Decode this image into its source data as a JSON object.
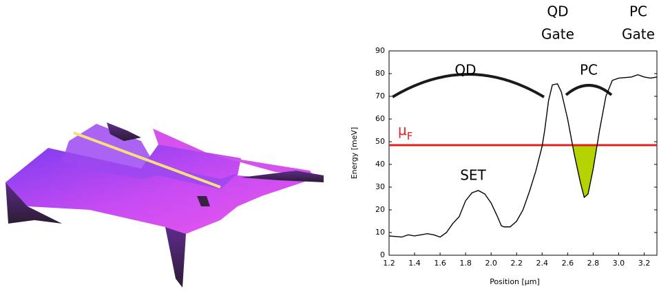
{
  "chart_data": {
    "type": "line",
    "x_label": "Position [μm]",
    "y_label": "Energy [meV]",
    "x": [
      1.2,
      1.3,
      1.35,
      1.4,
      1.5,
      1.55,
      1.6,
      1.65,
      1.7,
      1.75,
      1.8,
      1.85,
      1.9,
      1.95,
      2.0,
      2.05,
      2.08,
      2.1,
      2.15,
      2.2,
      2.25,
      2.3,
      2.35,
      2.4,
      2.42,
      2.45,
      2.48,
      2.52,
      2.55,
      2.6,
      2.65,
      2.7,
      2.73,
      2.76,
      2.8,
      2.85,
      2.9,
      2.95,
      3.0,
      3.1,
      3.15,
      3.2,
      3.25,
      3.3
    ],
    "series": [
      {
        "color": "#000000",
        "values": [
          8.5,
          8,
          9,
          8.5,
          9.5,
          9,
          8,
          10,
          14,
          17,
          24,
          27.5,
          28.5,
          27,
          23,
          17,
          13,
          12.5,
          12.5,
          15,
          20,
          28,
          37,
          48,
          55,
          68,
          75,
          75.5,
          72,
          60,
          45,
          32,
          25.5,
          27,
          38,
          55,
          70,
          77,
          78,
          78.5,
          79.5,
          78.5,
          78,
          78.5
        ]
      }
    ],
    "fermi_level": 48.5,
    "fermi_color": "#e32020",
    "fill_color": "#b5d300",
    "fermi_label": "μ",
    "fermi_label_sub": "F",
    "annotations": [
      "QD",
      "PC",
      "SET"
    ],
    "gate_labels": [
      [
        "QD",
        "Gate"
      ],
      [
        "PC",
        "Gate"
      ]
    ],
    "xlim": [
      1.2,
      3.3
    ],
    "ylim": [
      0,
      90
    ],
    "xticks": [
      1.2,
      1.4,
      1.6,
      1.8,
      {
        "value": 2,
        "label": "2.0"
      },
      2.2,
      2.4,
      2.6,
      2.8,
      {
        "value": 3,
        "label": "3.0"
      },
      3.2
    ],
    "yticks": [
      0,
      10,
      20,
      30,
      40,
      50,
      60,
      70,
      80,
      90
    ]
  }
}
